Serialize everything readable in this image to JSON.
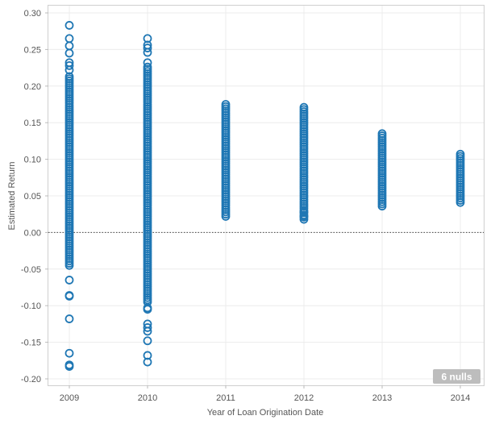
{
  "chart_data": {
    "type": "scatter",
    "xlabel": "Year of Loan Origination Date",
    "ylabel": "Estimated Return",
    "categories": [
      "2009",
      "2010",
      "2011",
      "2012",
      "2013",
      "2014"
    ],
    "yticks": [
      -0.2,
      -0.15,
      -0.1,
      -0.05,
      0.0,
      0.05,
      0.1,
      0.15,
      0.2,
      0.25,
      0.3
    ],
    "ylim": [
      -0.2,
      0.3
    ],
    "grid": true,
    "zero_line": true,
    "marker": "open-circle",
    "color": "#1f77b4",
    "null_badge": "6 nulls",
    "series": [
      {
        "category": "2009",
        "range": [
          -0.045,
          0.215
        ],
        "outliers": [
          0.283,
          0.265,
          0.255,
          0.245,
          0.232,
          0.228,
          0.222,
          -0.065,
          -0.086,
          -0.087,
          -0.118,
          -0.165,
          -0.181,
          -0.183
        ]
      },
      {
        "category": "2010",
        "range": [
          -0.095,
          0.228
        ],
        "outliers": [
          0.265,
          0.256,
          0.246,
          0.252,
          0.232,
          -0.103,
          -0.105,
          -0.125,
          -0.13,
          -0.135,
          -0.148,
          -0.168,
          -0.177
        ]
      },
      {
        "category": "2011",
        "range": [
          0.022,
          0.175
        ],
        "outliers": []
      },
      {
        "category": "2012",
        "range": [
          0.018,
          0.172
        ],
        "outliers": [
          0.028,
          0.022
        ]
      },
      {
        "category": "2013",
        "range": [
          0.036,
          0.137
        ],
        "outliers": []
      },
      {
        "category": "2014",
        "range": [
          0.041,
          0.108
        ],
        "outliers": []
      }
    ]
  }
}
